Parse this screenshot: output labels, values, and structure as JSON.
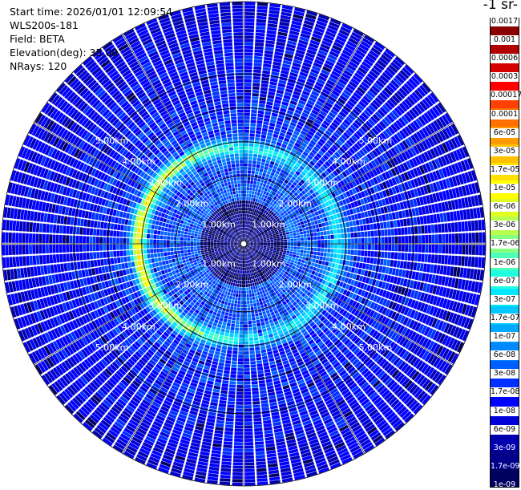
{
  "header": {
    "start_time": "Start time: 2026/01/01 12:09:54",
    "instrument": "WLS200s-181",
    "field": "Field: BETA",
    "elevation": "Elevation(deg): 35.00",
    "nrays": "NRays: 120"
  },
  "colorbar": {
    "unit_title": "-1 sr-",
    "labels": [
      "0.0017",
      "0.001",
      "0.0006",
      "0.0003",
      "0.00017",
      "0.0001",
      "6e-05",
      "3e-05",
      "1.7e-05",
      "1e-05",
      "6e-06",
      "3e-06",
      "1.7e-06",
      "1e-06",
      "6e-07",
      "3e-07",
      "1.7e-07",
      "1e-07",
      "6e-08",
      "3e-08",
      "1.7e-08",
      "1e-08",
      "6e-09",
      "3e-09",
      "1.7e-09",
      "1e-09"
    ],
    "colors": [
      "#8b0000",
      "#b00000",
      "#d40000",
      "#ff0000",
      "#ff4000",
      "#ff7000",
      "#ff9a00",
      "#ffc000",
      "#ffe000",
      "#ffff00",
      "#e0ff20",
      "#b8ff50",
      "#88ff80",
      "#50ffb8",
      "#20ffe0",
      "#00e8ff",
      "#00c8ff",
      "#00a8ff",
      "#0088ff",
      "#0060ff",
      "#0030ff",
      "#0000ff",
      "#0000d8",
      "#0000b0",
      "#000088",
      "#000060"
    ]
  },
  "chart_data": {
    "type": "heatmap",
    "projection": "polar (PPI)",
    "field": "BETA",
    "elevation_deg": 35.0,
    "nrays": 120,
    "range_rings_km": [
      "1.00km",
      "2.00km",
      "3.00km",
      "4.00km",
      "5.00km"
    ],
    "scale": "log",
    "color_range": [
      1e-09,
      0.0017
    ]
  }
}
